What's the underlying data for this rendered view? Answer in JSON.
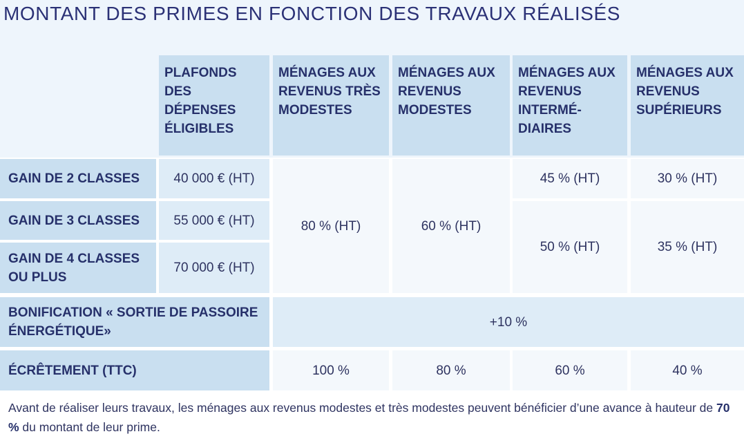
{
  "title": "MONTANT DES PRIMES EN FONCTION DES TRAVAUX RÉALISÉS",
  "colors": {
    "header_bg": "#c9dff0",
    "value_bg": "#deecf7",
    "cell_bg": "#f4f8fc",
    "page_bg": "#eef5fc",
    "text": "#2b3176"
  },
  "headers": [
    "PLAFONDS DES DÉPENSES ÉLIGIBLES",
    "MÉNAGES AUX REVENUS TRÈS MODESTES",
    "MÉNAGES AUX REVENUS MODESTES",
    "MÉNAGES AUX REVENUS INTERMÉ-DIAIRES",
    "MÉNAGES AUX REVENUS SUPÉRIEURS"
  ],
  "rows": [
    {
      "label": "GAIN DE 2 CLASSES",
      "plafond": "40 000 € (HT)"
    },
    {
      "label": "GAIN DE 3 CLASSES",
      "plafond": "55 000 € (HT)"
    },
    {
      "label": "GAIN DE 4 CLASSES OU PLUS",
      "plafond": "70 000 € (HT)"
    }
  ],
  "rates": {
    "tres_modestes": "80 % (HT)",
    "modestes": "60 % (HT)",
    "intermediaires_2": "45 % (HT)",
    "superieurs_2": "30 % (HT)",
    "intermediaires_3plus": "50 % (HT)",
    "superieurs_3plus": "35 % (HT)"
  },
  "bonus": {
    "label": "BONIFICATION « SORTIE DE PASSOIRE ÉNERGÉTIQUE»",
    "value": "+10 %"
  },
  "ecretement": {
    "label": "ÉCRÊTEMENT (TTC)",
    "values": [
      "100 %",
      "80 %",
      "60 %",
      "40 %"
    ]
  },
  "note": {
    "before": "Avant de réaliser leurs travaux, les ménages aux revenus modestes et très modestes peuvent bénéficier d’une avance à hauteur de ",
    "bold": "70 %",
    "after": " du montant de leur prime."
  }
}
